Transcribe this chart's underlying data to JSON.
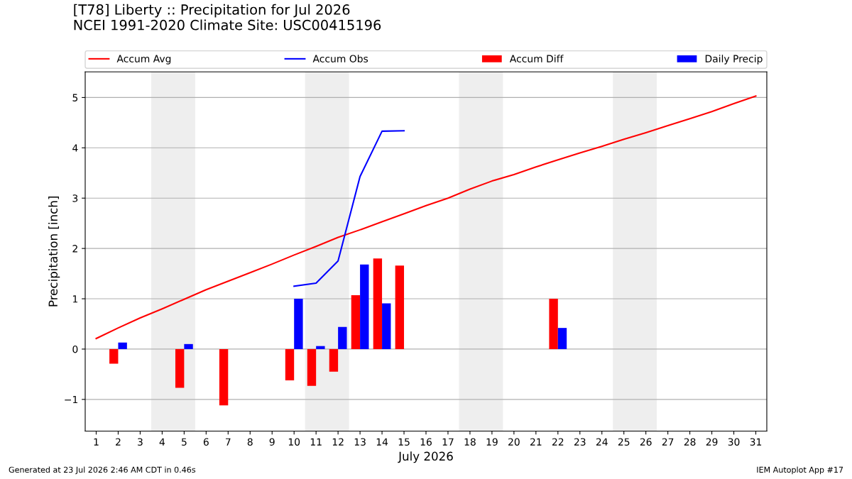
{
  "chart_data": {
    "type": "bar",
    "title": "[T78] Liberty :: Precipitation for Jul 2026\nNCEI 1991-2020 Climate Site: USC00415196",
    "xlabel": "July 2026",
    "ylabel": "Precipitation [inch]",
    "x": [
      1,
      2,
      3,
      4,
      5,
      6,
      7,
      8,
      9,
      10,
      11,
      12,
      13,
      14,
      15,
      16,
      17,
      18,
      19,
      20,
      21,
      22,
      23,
      24,
      25,
      26,
      27,
      28,
      29,
      30,
      31
    ],
    "series": [
      {
        "name": "Accum Avg",
        "type": "line",
        "color": "#ff0000",
        "values": [
          0.21,
          0.42,
          0.62,
          0.8,
          0.99,
          1.18,
          1.35,
          1.52,
          1.69,
          1.87,
          2.04,
          2.22,
          2.37,
          2.53,
          2.69,
          2.85,
          3.0,
          3.18,
          3.34,
          3.47,
          3.62,
          3.76,
          3.9,
          4.03,
          4.17,
          4.3,
          4.44,
          4.58,
          4.72,
          4.88,
          5.03
        ]
      },
      {
        "name": "Accum Obs",
        "type": "line",
        "color": "#0000ff",
        "x": [
          10,
          11,
          12,
          13,
          14,
          15
        ],
        "values": [
          1.25,
          1.31,
          1.75,
          3.43,
          4.33,
          4.34
        ]
      },
      {
        "name": "Accum Diff",
        "color": "#ff0000",
        "x": [
          2,
          5,
          7,
          10,
          11,
          12,
          13,
          14,
          15,
          22
        ],
        "values": [
          -0.29,
          -0.77,
          -1.12,
          -0.62,
          -0.73,
          -0.45,
          1.07,
          1.8,
          1.66,
          1.0
        ]
      },
      {
        "name": "Daily Precip",
        "color": "#0000ff",
        "x": [
          2,
          5,
          10,
          11,
          12,
          13,
          14,
          22
        ],
        "values": [
          0.13,
          0.1,
          1.0,
          0.06,
          0.44,
          1.68,
          0.91,
          0.42
        ]
      }
    ],
    "bands": [
      {
        "axis": "x",
        "from": 3.5,
        "to": 5.5,
        "color": "#eeeeee"
      },
      {
        "axis": "x",
        "from": 10.5,
        "to": 12.5,
        "color": "#eeeeee"
      },
      {
        "axis": "x",
        "from": 17.5,
        "to": 19.5,
        "color": "#eeeeee"
      },
      {
        "axis": "x",
        "from": 24.5,
        "to": 26.5,
        "color": "#eeeeee"
      }
    ],
    "xlim": [
      0.5,
      31.5
    ],
    "xticks": [
      1,
      2,
      3,
      4,
      5,
      6,
      7,
      8,
      9,
      10,
      11,
      12,
      13,
      14,
      15,
      16,
      17,
      18,
      19,
      20,
      21,
      22,
      23,
      24,
      25,
      26,
      27,
      28,
      29,
      30,
      31
    ],
    "ylim": [
      -1.63,
      5.51
    ],
    "yticks": [
      {
        "value": -1,
        "label": "−1"
      },
      0,
      1,
      2,
      3,
      4,
      5
    ],
    "grid": "y",
    "legend": "top",
    "annotations": [
      "Generated at 23 Jul 2026 2:46 AM CDT in 0.46s",
      "IEM Autoplot App #17"
    ]
  }
}
